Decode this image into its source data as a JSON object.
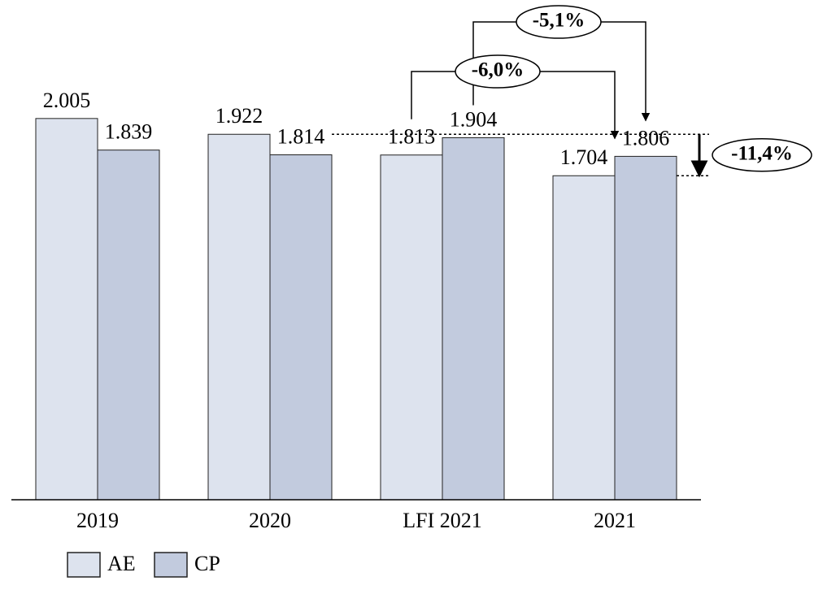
{
  "chart_data": {
    "type": "bar",
    "categories": [
      "2019",
      "2020",
      "LFI 2021",
      "2021"
    ],
    "series": [
      {
        "name": "AE",
        "color": "#dde3ee",
        "values": [
          2005,
          1922,
          1813,
          1704
        ],
        "value_labels": [
          "2.005",
          "1.922",
          "1.813",
          "1.704"
        ]
      },
      {
        "name": "CP",
        "color": "#c2cbde",
        "values": [
          1839,
          1814,
          1904,
          1806
        ],
        "value_labels": [
          "1.839",
          "1.814",
          "1.904",
          "1.806"
        ]
      }
    ],
    "ylim": [
      0,
      2500
    ],
    "annotations": [
      "-5,1%",
      "-6,0%",
      "-11,4%"
    ],
    "legend": "bottom-left"
  }
}
